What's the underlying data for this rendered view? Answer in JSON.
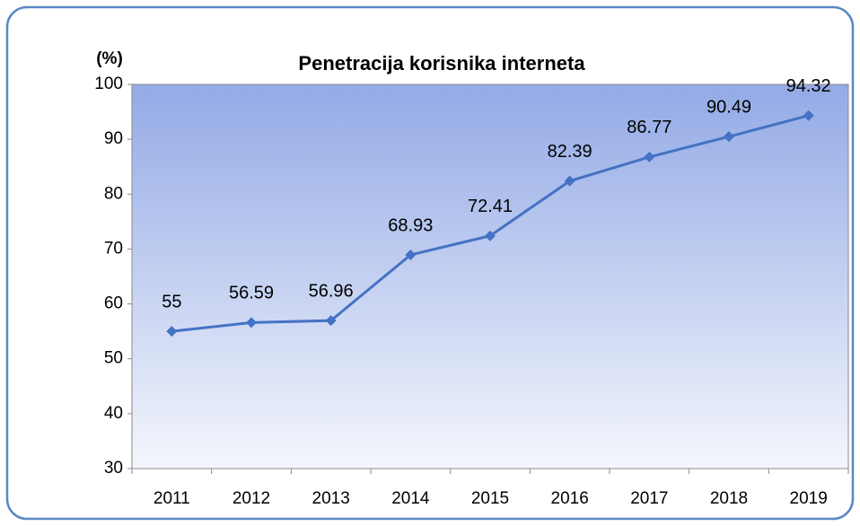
{
  "chart_data": {
    "type": "line",
    "title": "Penetracija korisnika interneta",
    "y_label": "(%)",
    "categories": [
      "2011",
      "2012",
      "2013",
      "2014",
      "2015",
      "2016",
      "2017",
      "2018",
      "2019"
    ],
    "values": [
      55,
      56.59,
      56.96,
      68.93,
      72.41,
      82.39,
      86.77,
      90.49,
      94.32
    ],
    "color": "#4472c4",
    "ylim": [
      30,
      100
    ],
    "yticks": [
      30,
      40,
      50,
      60,
      70,
      80,
      90,
      100
    ],
    "data_labels": true
  }
}
